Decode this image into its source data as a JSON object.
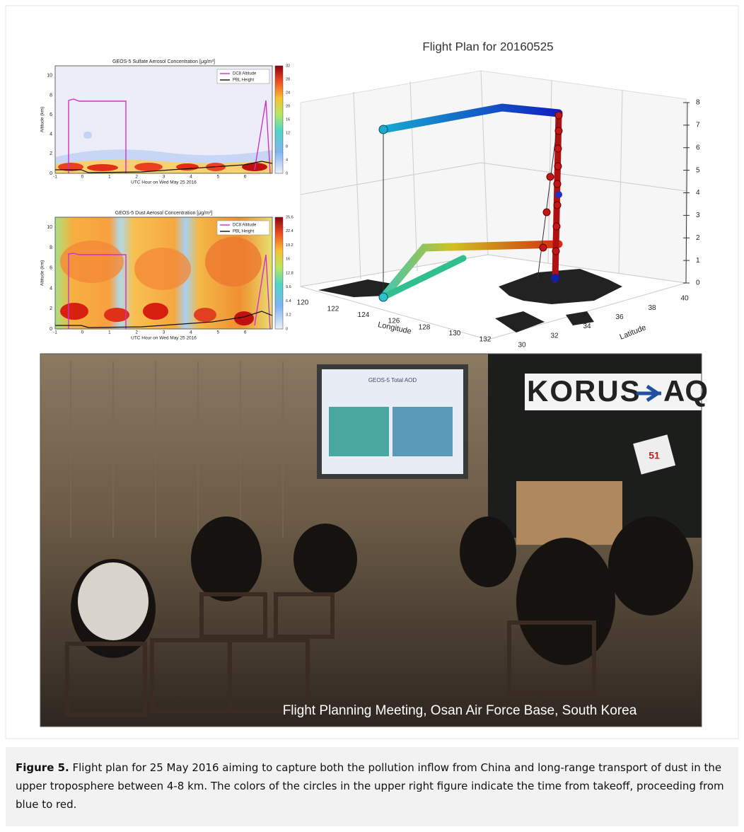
{
  "figure": {
    "panels": [
      {
        "title": "GEOS-5 Sulfate Aerosol Concentration [μg/m³]",
        "y_label": "Altitude (km)",
        "x_label": "UTC Hour on Wed May 25 2016",
        "legend": [
          "DC8 Altitude",
          "PBL Height"
        ],
        "yticks": [
          0,
          2,
          4,
          6,
          8,
          10
        ],
        "xticks": [
          -1,
          0,
          1,
          2,
          3,
          4,
          5,
          6
        ],
        "colorbar_ticks": [
          0,
          4,
          8,
          12,
          16,
          20,
          24,
          28,
          32
        ]
      },
      {
        "title": "GEOS-5 Dust Aerosol Concentration [μg/m³]",
        "y_label": "Altitude (km)",
        "x_label": "UTC Hour on Wed May 25 2016",
        "legend": [
          "DC8 Altitude",
          "PBL Height"
        ],
        "yticks": [
          0,
          2,
          4,
          6,
          8,
          10
        ],
        "xticks": [
          -1,
          0,
          1,
          2,
          3,
          4,
          5,
          6
        ],
        "colorbar_ticks": [
          0,
          3.2,
          6.4,
          9.6,
          12.8,
          16,
          19.2,
          22.4,
          25.6
        ]
      }
    ],
    "plot3d": {
      "title": "Flight Plan for 20160525",
      "x_label": "Longitude",
      "xticks": [
        120,
        122,
        124,
        126,
        128,
        130,
        132
      ],
      "y_label": "Latitude",
      "yticks": [
        30,
        32,
        34,
        36,
        38,
        40
      ],
      "zticks": [
        0,
        1,
        2,
        3,
        4,
        5,
        6,
        7,
        8
      ]
    },
    "photo": {
      "overlay": "Flight Planning Meeting, Osan Air Force Base, South Korea",
      "sign_left": "KORUS",
      "sign_right": "AQ",
      "screen_title": "GEOS-5 Total AOD",
      "box_label": "51"
    },
    "caption": {
      "label": "Figure 5.",
      "text": "Flight plan for 25 May 2016 aiming to capture both the pollution inflow from China and long-range transport of dust in the upper troposphere between 4-8 km. The colors of the circles in the upper right figure indicate the time from takeoff, proceeding from blue to red."
    }
  }
}
